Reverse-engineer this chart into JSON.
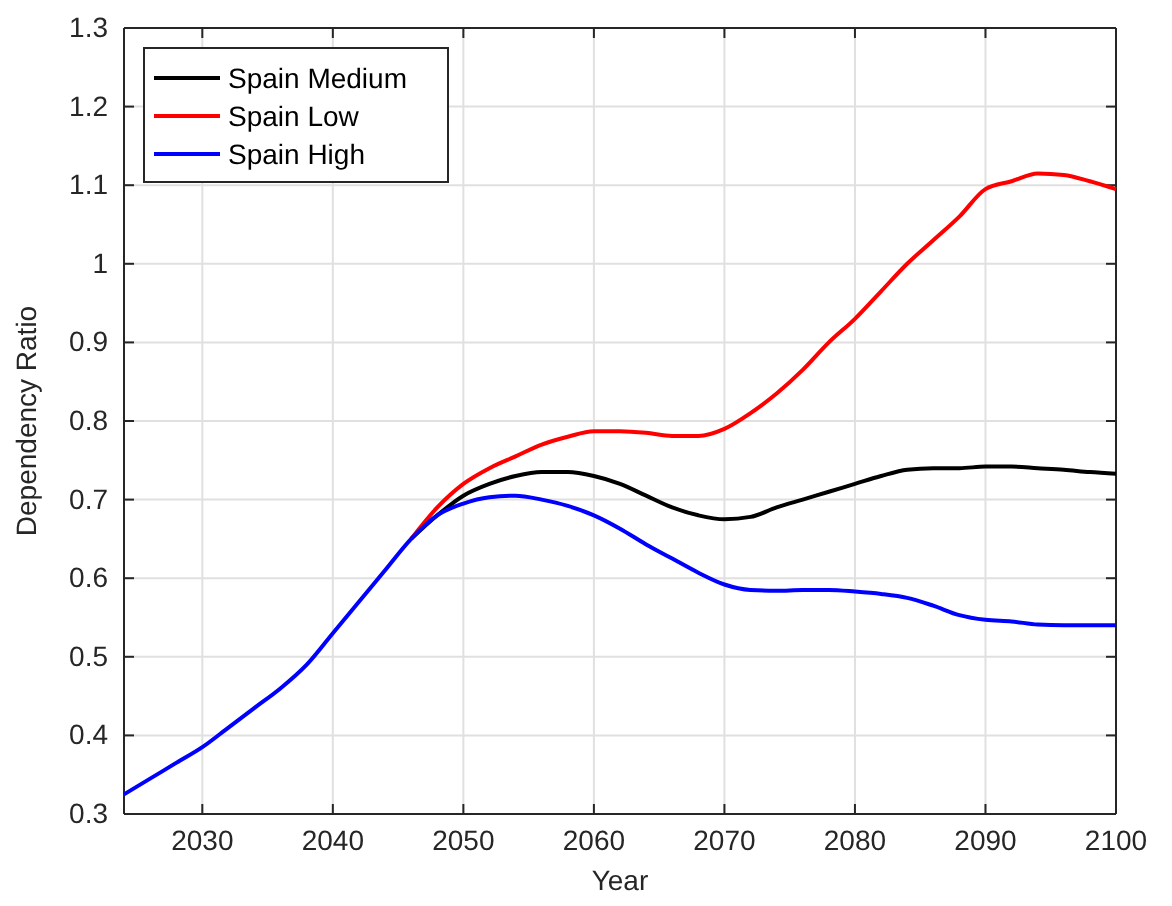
{
  "chart_data": {
    "type": "line",
    "xlabel": "Year",
    "ylabel": "Dependency Ratio",
    "x": [
      2024,
      2026,
      2028,
      2030,
      2032,
      2034,
      2036,
      2038,
      2040,
      2042,
      2044,
      2046,
      2048,
      2050,
      2052,
      2054,
      2056,
      2058,
      2060,
      2062,
      2064,
      2066,
      2068,
      2070,
      2072,
      2074,
      2076,
      2078,
      2080,
      2082,
      2084,
      2086,
      2088,
      2090,
      2092,
      2094,
      2096,
      2098,
      2100
    ],
    "series": [
      {
        "name": "Spain Medium",
        "color": "#000000",
        "values": [
          null,
          null,
          null,
          null,
          null,
          null,
          null,
          null,
          null,
          null,
          null,
          0.65,
          0.68,
          0.705,
          0.72,
          0.73,
          0.735,
          0.735,
          0.73,
          0.72,
          0.705,
          0.69,
          0.68,
          0.675,
          0.678,
          0.69,
          0.7,
          0.71,
          0.72,
          0.73,
          0.738,
          0.74,
          0.74,
          0.742,
          0.742,
          0.74,
          0.738,
          0.735,
          0.733
        ]
      },
      {
        "name": "Spain Low",
        "color": "#ff0000",
        "values": [
          null,
          null,
          null,
          null,
          null,
          null,
          null,
          null,
          null,
          null,
          null,
          0.65,
          0.69,
          0.72,
          0.74,
          0.755,
          0.77,
          0.78,
          0.787,
          0.787,
          0.785,
          0.781,
          0.781,
          0.79,
          0.81,
          0.835,
          0.865,
          0.9,
          0.93,
          0.965,
          1.0,
          1.03,
          1.06,
          1.095,
          1.105,
          1.115,
          1.113,
          1.105,
          1.095
        ]
      },
      {
        "name": "Spain High",
        "color": "#0000ff",
        "values": [
          0.325,
          0.345,
          0.365,
          0.385,
          0.41,
          0.435,
          0.46,
          0.49,
          0.53,
          0.57,
          0.61,
          0.65,
          0.68,
          0.695,
          0.703,
          0.705,
          0.7,
          0.692,
          0.68,
          0.663,
          0.643,
          0.625,
          0.607,
          0.592,
          0.585,
          0.584,
          0.585,
          0.585,
          0.583,
          0.58,
          0.575,
          0.565,
          0.553,
          0.547,
          0.545,
          0.541,
          0.54,
          0.54,
          0.54
        ]
      }
    ],
    "xlim": [
      2024,
      2100
    ],
    "xticks": [
      2030,
      2040,
      2050,
      2060,
      2070,
      2080,
      2090,
      2100
    ],
    "ylim": [
      0.3,
      1.3
    ],
    "yticks": [
      0.3,
      0.4,
      0.5,
      0.6,
      0.7,
      0.8,
      0.9,
      1,
      1.1,
      1.2,
      1.3
    ],
    "grid": true,
    "legend": "top left",
    "line_style": "solid",
    "marker": "none"
  }
}
